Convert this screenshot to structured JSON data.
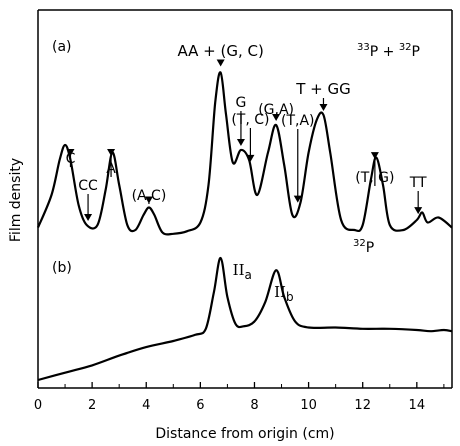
{
  "chart_data": {
    "type": "line",
    "xlabel": "Distance from origin (cm)",
    "ylabel": "Film density",
    "xlim": [
      0,
      15.3
    ],
    "x_ticks": [
      "0",
      "2",
      "4",
      "6",
      "8",
      "10",
      "12",
      "14"
    ],
    "grid": false,
    "panels": [
      {
        "label": "(a)",
        "isotope_label": {
          "a": "33",
          "b": "P + ",
          "c": "32",
          "d": "P"
        },
        "x": [
          0.0,
          0.5,
          0.8,
          1.0,
          1.2,
          1.5,
          1.8,
          2.2,
          2.5,
          2.75,
          3.0,
          3.3,
          3.6,
          3.9,
          4.1,
          4.3,
          4.6,
          5.0,
          5.5,
          6.0,
          6.3,
          6.55,
          6.75,
          6.95,
          7.2,
          7.5,
          7.8,
          8.1,
          8.5,
          8.8,
          9.1,
          9.4,
          9.7,
          10.0,
          10.3,
          10.55,
          10.8,
          11.2,
          11.7,
          12.0,
          12.3,
          12.5,
          12.75,
          13.0,
          13.5,
          14.0,
          14.2,
          14.4,
          14.8,
          15.3
        ],
        "y": [
          0.5,
          1.8,
          3.2,
          3.8,
          3.2,
          1.4,
          0.6,
          0.6,
          2.0,
          3.5,
          2.2,
          0.6,
          0.4,
          1.0,
          1.3,
          1.0,
          0.3,
          0.25,
          0.35,
          0.7,
          2.2,
          5.5,
          6.7,
          5.0,
          3.1,
          3.6,
          3.2,
          1.8,
          3.5,
          4.6,
          3.0,
          1.0,
          1.5,
          3.5,
          4.8,
          5.0,
          3.5,
          0.8,
          0.4,
          0.6,
          2.4,
          3.3,
          2.2,
          0.6,
          0.4,
          0.8,
          1.1,
          0.7,
          0.9,
          0.5
        ],
        "peak_labels": [
          {
            "text": "C",
            "x": 1.2
          },
          {
            "text": "CC",
            "x": 1.85
          },
          {
            "text": "A",
            "x": 2.7
          },
          {
            "text": "(A,C)",
            "x": 4.1
          },
          {
            "text": "AA + (G, C)",
            "x": 6.75
          },
          {
            "text": "G",
            "x": 7.5
          },
          {
            "text": "(T, C)",
            "x": 7.85
          },
          {
            "text": "(G,A)",
            "x": 8.8
          },
          {
            "text": "(T,A)",
            "x": 9.6
          },
          {
            "text": "T + GG",
            "x": 10.55
          },
          {
            "text": "(T, G)",
            "x": 12.45
          },
          {
            "text": "TT",
            "x": 14.05
          }
        ]
      },
      {
        "label": "(b)",
        "isotope_label": {
          "a": "32",
          "b": "P"
        },
        "x": [
          0.0,
          1.0,
          2.0,
          3.0,
          4.0,
          5.0,
          5.8,
          6.2,
          6.5,
          6.75,
          7.0,
          7.3,
          7.6,
          8.0,
          8.4,
          8.8,
          9.1,
          9.5,
          10.0,
          11.0,
          12.0,
          13.0,
          14.0,
          14.5,
          15.0,
          15.3
        ],
        "y": [
          0.0,
          0.3,
          0.6,
          1.0,
          1.35,
          1.6,
          1.85,
          2.1,
          3.6,
          5.0,
          3.4,
          2.3,
          2.2,
          2.4,
          3.2,
          4.5,
          3.4,
          2.4,
          2.15,
          2.15,
          2.1,
          2.1,
          2.05,
          2.0,
          2.05,
          2.0
        ],
        "peak_labels": [
          {
            "text": "II",
            "sub": "a",
            "x": 6.75
          },
          {
            "text": "II",
            "sub": "b",
            "x": 8.8
          }
        ]
      }
    ]
  }
}
